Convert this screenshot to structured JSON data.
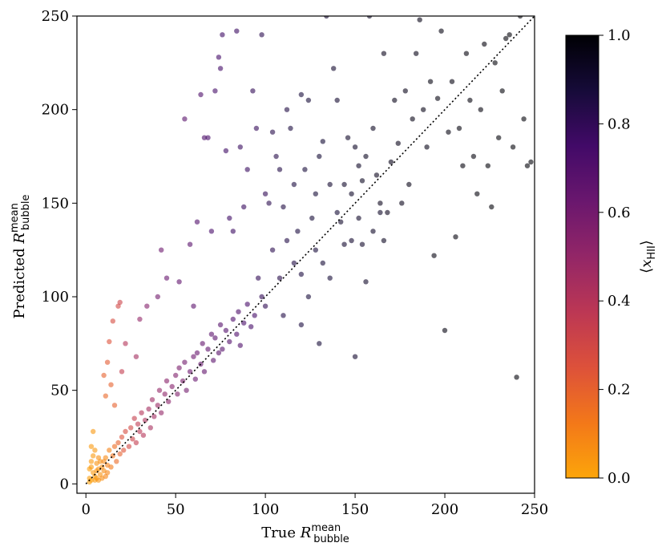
{
  "chart_data": {
    "type": "scatter",
    "xlabel": {
      "prefix": "True ",
      "symbol": "R",
      "sup": "mean",
      "sub": "bubble"
    },
    "ylabel": {
      "prefix": "Predicted ",
      "symbol": "R",
      "sup": "mean",
      "sub": "bubble"
    },
    "xlim": [
      -5,
      250
    ],
    "ylim": [
      -5,
      250
    ],
    "xticks": [
      0,
      50,
      100,
      150,
      200,
      250
    ],
    "yticks": [
      0,
      50,
      100,
      150,
      200,
      250
    ],
    "reference_line": {
      "style": "dotted",
      "from": [
        0,
        0
      ],
      "to": [
        250,
        250
      ]
    },
    "colorbar": {
      "label": "⟨x_HII⟩",
      "label_symbol": "x",
      "label_sub": "HII",
      "range": [
        0,
        1
      ],
      "ticks": [
        "0.0",
        "0.2",
        "0.4",
        "0.6",
        "0.8",
        "1.0"
      ],
      "colormap": [
        "#fca50a",
        "#f37819",
        "#dd513a",
        "#bc3754",
        "#932667",
        "#6a176e",
        "#420a68",
        "#160b39",
        "#000004"
      ]
    },
    "points": [
      [
        2,
        3,
        0.02
      ],
      [
        3,
        2,
        0.02
      ],
      [
        4,
        6,
        0.03
      ],
      [
        2,
        8,
        0.02
      ],
      [
        5,
        4,
        0.03
      ],
      [
        3,
        12,
        0.03
      ],
      [
        6,
        3,
        0.04
      ],
      [
        7,
        8,
        0.05
      ],
      [
        4,
        15,
        0.03
      ],
      [
        8,
        5,
        0.05
      ],
      [
        5,
        18,
        0.04
      ],
      [
        9,
        9,
        0.06
      ],
      [
        3,
        20,
        0.03
      ],
      [
        10,
        7,
        0.07
      ],
      [
        6,
        11,
        0.05
      ],
      [
        11,
        14,
        0.08
      ],
      [
        4,
        28,
        0.04
      ],
      [
        12,
        6,
        0.09
      ],
      [
        7,
        14,
        0.06
      ],
      [
        13,
        18,
        0.1
      ],
      [
        2,
        1,
        0.02
      ],
      [
        5,
        2,
        0.03
      ],
      [
        8,
        12,
        0.06
      ],
      [
        9,
        3,
        0.07
      ],
      [
        6,
        7,
        0.05
      ],
      [
        10,
        12,
        0.08
      ],
      [
        11,
        4,
        0.09
      ],
      [
        3,
        9,
        0.03
      ],
      [
        7,
        2,
        0.05
      ],
      [
        12,
        10,
        0.1
      ],
      [
        14,
        9,
        0.12
      ],
      [
        15,
        15,
        0.14
      ],
      [
        16,
        20,
        0.16
      ],
      [
        17,
        12,
        0.17
      ],
      [
        18,
        22,
        0.2
      ],
      [
        19,
        16,
        0.2
      ],
      [
        20,
        25,
        0.25
      ],
      [
        21,
        18,
        0.24
      ],
      [
        22,
        28,
        0.28
      ],
      [
        24,
        20,
        0.3
      ],
      [
        25,
        30,
        0.3
      ],
      [
        26,
        24,
        0.32
      ],
      [
        27,
        35,
        0.34
      ],
      [
        28,
        22,
        0.35
      ],
      [
        29,
        32,
        0.36
      ],
      [
        30,
        28,
        0.38
      ],
      [
        31,
        38,
        0.4
      ],
      [
        32,
        26,
        0.4
      ],
      [
        33,
        34,
        0.42
      ],
      [
        35,
        40,
        0.45
      ],
      [
        36,
        30,
        0.44
      ],
      [
        37,
        45,
        0.47
      ],
      [
        38,
        36,
        0.46
      ],
      [
        40,
        42,
        0.48
      ],
      [
        41,
        50,
        0.5
      ],
      [
        42,
        38,
        0.5
      ],
      [
        44,
        48,
        0.52
      ],
      [
        45,
        55,
        0.53
      ],
      [
        46,
        44,
        0.53
      ],
      [
        48,
        52,
        0.55
      ],
      [
        50,
        58,
        0.56
      ],
      [
        51,
        48,
        0.56
      ],
      [
        52,
        62,
        0.58
      ],
      [
        54,
        55,
        0.58
      ],
      [
        55,
        65,
        0.6
      ],
      [
        56,
        50,
        0.6
      ],
      [
        58,
        60,
        0.62
      ],
      [
        60,
        68,
        0.62
      ],
      [
        61,
        56,
        0.63
      ],
      [
        62,
        70,
        0.64
      ],
      [
        64,
        64,
        0.64
      ],
      [
        65,
        75,
        0.65
      ],
      [
        66,
        60,
        0.65
      ],
      [
        68,
        72,
        0.66
      ],
      [
        70,
        80,
        0.67
      ],
      [
        71,
        66,
        0.67
      ],
      [
        72,
        78,
        0.68
      ],
      [
        74,
        70,
        0.68
      ],
      [
        75,
        85,
        0.69
      ],
      [
        76,
        72,
        0.69
      ],
      [
        78,
        82,
        0.7
      ],
      [
        80,
        76,
        0.7
      ],
      [
        82,
        88,
        0.71
      ],
      [
        84,
        80,
        0.71
      ],
      [
        85,
        92,
        0.72
      ],
      [
        86,
        74,
        0.72
      ],
      [
        88,
        86,
        0.73
      ],
      [
        90,
        96,
        0.73
      ],
      [
        92,
        84,
        0.74
      ],
      [
        94,
        90,
        0.74
      ],
      [
        10,
        58,
        0.2
      ],
      [
        12,
        65,
        0.22
      ],
      [
        13,
        76,
        0.25
      ],
      [
        15,
        87,
        0.28
      ],
      [
        18,
        95,
        0.3
      ],
      [
        19,
        97,
        0.32
      ],
      [
        14,
        53,
        0.2
      ],
      [
        11,
        47,
        0.18
      ],
      [
        16,
        42,
        0.2
      ],
      [
        20,
        60,
        0.35
      ],
      [
        22,
        75,
        0.4
      ],
      [
        28,
        68,
        0.45
      ],
      [
        30,
        88,
        0.5
      ],
      [
        34,
        95,
        0.55
      ],
      [
        40,
        100,
        0.6
      ],
      [
        42,
        125,
        0.62
      ],
      [
        45,
        110,
        0.63
      ],
      [
        52,
        108,
        0.66
      ],
      [
        55,
        195,
        0.68
      ],
      [
        58,
        128,
        0.68
      ],
      [
        60,
        95,
        0.67
      ],
      [
        62,
        140,
        0.7
      ],
      [
        64,
        208,
        0.72
      ],
      [
        66,
        185,
        0.72
      ],
      [
        68,
        185,
        0.73
      ],
      [
        70,
        135,
        0.73
      ],
      [
        72,
        210,
        0.74
      ],
      [
        74,
        228,
        0.75
      ],
      [
        75,
        222,
        0.75
      ],
      [
        76,
        240,
        0.76
      ],
      [
        78,
        178,
        0.76
      ],
      [
        80,
        142,
        0.76
      ],
      [
        82,
        135,
        0.77
      ],
      [
        84,
        242,
        0.77
      ],
      [
        86,
        180,
        0.78
      ],
      [
        88,
        148,
        0.78
      ],
      [
        90,
        168,
        0.78
      ],
      [
        93,
        210,
        0.8
      ],
      [
        95,
        190,
        0.79
      ],
      [
        98,
        240,
        0.82
      ],
      [
        100,
        155,
        0.8
      ],
      [
        102,
        150,
        0.82
      ],
      [
        104,
        188,
        0.83
      ],
      [
        106,
        175,
        0.83
      ],
      [
        108,
        168,
        0.84
      ],
      [
        110,
        148,
        0.85
      ],
      [
        112,
        200,
        0.85
      ],
      [
        114,
        190,
        0.86
      ],
      [
        116,
        160,
        0.86
      ],
      [
        118,
        135,
        0.86
      ],
      [
        120,
        208,
        0.87
      ],
      [
        122,
        168,
        0.87
      ],
      [
        124,
        205,
        0.88
      ],
      [
        126,
        142,
        0.88
      ],
      [
        128,
        155,
        0.88
      ],
      [
        130,
        175,
        0.89
      ],
      [
        132,
        183,
        0.89
      ],
      [
        134,
        250,
        0.9
      ],
      [
        136,
        160,
        0.9
      ],
      [
        138,
        222,
        0.9
      ],
      [
        140,
        205,
        0.9
      ],
      [
        142,
        140,
        0.91
      ],
      [
        144,
        160,
        0.91
      ],
      [
        146,
        185,
        0.91
      ],
      [
        148,
        155,
        0.92
      ],
      [
        150,
        180,
        0.92
      ],
      [
        152,
        170,
        0.92
      ],
      [
        154,
        162,
        0.93
      ],
      [
        156,
        175,
        0.93
      ],
      [
        158,
        250,
        0.93
      ],
      [
        160,
        190,
        0.93
      ],
      [
        162,
        165,
        0.94
      ],
      [
        164,
        150,
        0.94
      ],
      [
        166,
        230,
        0.94
      ],
      [
        168,
        145,
        0.94
      ],
      [
        170,
        172,
        0.95
      ],
      [
        172,
        205,
        0.95
      ],
      [
        174,
        182,
        0.95
      ],
      [
        176,
        150,
        0.95
      ],
      [
        178,
        210,
        0.95
      ],
      [
        180,
        160,
        0.96
      ],
      [
        182,
        195,
        0.96
      ],
      [
        184,
        230,
        0.96
      ],
      [
        186,
        248,
        0.96
      ],
      [
        188,
        200,
        0.96
      ],
      [
        190,
        180,
        0.96
      ],
      [
        192,
        215,
        0.97
      ],
      [
        194,
        122,
        0.97
      ],
      [
        196,
        206,
        0.97
      ],
      [
        198,
        242,
        0.97
      ],
      [
        200,
        82,
        0.97
      ],
      [
        202,
        188,
        0.97
      ],
      [
        204,
        215,
        0.97
      ],
      [
        206,
        132,
        0.98
      ],
      [
        208,
        190,
        0.98
      ],
      [
        210,
        170,
        0.98
      ],
      [
        212,
        230,
        0.98
      ],
      [
        214,
        205,
        0.98
      ],
      [
        216,
        175,
        0.98
      ],
      [
        218,
        155,
        0.98
      ],
      [
        220,
        200,
        0.98
      ],
      [
        222,
        235,
        0.98
      ],
      [
        224,
        170,
        0.99
      ],
      [
        226,
        148,
        0.99
      ],
      [
        228,
        225,
        0.99
      ],
      [
        230,
        185,
        0.99
      ],
      [
        232,
        210,
        0.99
      ],
      [
        234,
        238,
        0.99
      ],
      [
        236,
        240,
        0.99
      ],
      [
        238,
        180,
        0.99
      ],
      [
        240,
        57,
        0.99
      ],
      [
        242,
        250,
        0.99
      ],
      [
        244,
        195,
        0.99
      ],
      [
        246,
        170,
        0.99
      ],
      [
        248,
        172,
        0.99
      ],
      [
        150,
        68,
        0.9
      ],
      [
        130,
        75,
        0.88
      ],
      [
        120,
        85,
        0.86
      ],
      [
        110,
        90,
        0.84
      ],
      [
        98,
        100,
        0.8
      ],
      [
        96,
        110,
        0.8
      ],
      [
        100,
        95,
        0.81
      ],
      [
        104,
        125,
        0.82
      ],
      [
        108,
        110,
        0.83
      ],
      [
        112,
        130,
        0.84
      ],
      [
        116,
        118,
        0.85
      ],
      [
        120,
        112,
        0.86
      ],
      [
        124,
        100,
        0.87
      ],
      [
        128,
        125,
        0.87
      ],
      [
        132,
        118,
        0.88
      ],
      [
        136,
        110,
        0.88
      ],
      [
        140,
        145,
        0.89
      ],
      [
        144,
        128,
        0.9
      ],
      [
        148,
        130,
        0.9
      ],
      [
        152,
        142,
        0.91
      ],
      [
        154,
        128,
        0.91
      ],
      [
        156,
        108,
        0.91
      ],
      [
        160,
        135,
        0.92
      ],
      [
        164,
        145,
        0.92
      ],
      [
        166,
        130,
        0.93
      ]
    ]
  }
}
